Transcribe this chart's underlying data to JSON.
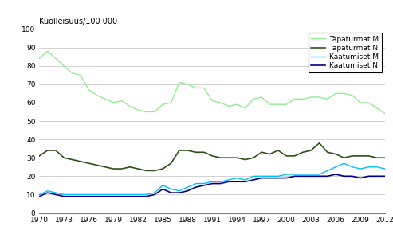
{
  "years": [
    1970,
    1971,
    1972,
    1973,
    1974,
    1975,
    1976,
    1977,
    1978,
    1979,
    1980,
    1981,
    1982,
    1983,
    1984,
    1985,
    1986,
    1987,
    1988,
    1989,
    1990,
    1991,
    1992,
    1993,
    1994,
    1995,
    1996,
    1997,
    1998,
    1999,
    2000,
    2001,
    2002,
    2003,
    2004,
    2005,
    2006,
    2007,
    2008,
    2009,
    2010,
    2011,
    2012
  ],
  "tapaturmat_M": [
    84,
    88,
    84,
    80,
    76,
    75,
    67,
    64,
    62,
    60,
    61,
    58,
    56,
    55,
    55,
    59,
    60,
    71,
    70,
    68,
    68,
    61,
    60,
    58,
    59,
    57,
    62,
    63,
    59,
    59,
    59,
    62,
    62,
    63,
    63,
    62,
    65,
    65,
    64,
    60,
    60,
    57,
    54
  ],
  "tapaturmat_N": [
    31,
    34,
    34,
    30,
    29,
    28,
    27,
    26,
    25,
    24,
    24,
    25,
    24,
    23,
    23,
    24,
    27,
    34,
    34,
    33,
    33,
    31,
    30,
    30,
    30,
    29,
    30,
    33,
    32,
    34,
    31,
    31,
    33,
    34,
    38,
    33,
    32,
    30,
    31,
    31,
    31,
    30,
    30
  ],
  "kaatumiset_M": [
    10,
    12,
    11,
    10,
    10,
    10,
    10,
    10,
    10,
    10,
    10,
    10,
    10,
    10,
    11,
    15,
    13,
    12,
    14,
    16,
    16,
    17,
    17,
    18,
    19,
    18,
    20,
    20,
    20,
    20,
    21,
    21,
    21,
    21,
    21,
    23,
    25,
    27,
    25,
    24,
    25,
    25,
    24
  ],
  "kaatumiset_N": [
    9,
    11,
    10,
    9,
    9,
    9,
    9,
    9,
    9,
    9,
    9,
    9,
    9,
    9,
    10,
    13,
    11,
    11,
    12,
    14,
    15,
    16,
    16,
    17,
    17,
    17,
    18,
    19,
    19,
    19,
    19,
    20,
    20,
    20,
    20,
    20,
    21,
    20,
    20,
    19,
    20,
    20,
    20
  ],
  "color_tapaturmat_M": "#90EE90",
  "color_tapaturmat_N": "#2d5016",
  "color_kaatumiset_M": "#00bfff",
  "color_kaatumiset_N": "#00008b",
  "ylabel": "Kuolleisuus/100 000",
  "ylim": [
    0,
    100
  ],
  "yticks": [
    0,
    10,
    20,
    30,
    40,
    50,
    60,
    70,
    80,
    90,
    100
  ],
  "xlim": [
    1970,
    2012
  ],
  "xticks": [
    1970,
    1973,
    1976,
    1979,
    1982,
    1985,
    1988,
    1991,
    1994,
    1997,
    2000,
    2003,
    2006,
    2009,
    2012
  ],
  "legend_labels": [
    "Tapaturmat M",
    "Tapaturmat N",
    "Kaatumiset M",
    "Kaatumiset N"
  ],
  "background_color": "#ffffff",
  "grid_color": "#c0c0c0"
}
